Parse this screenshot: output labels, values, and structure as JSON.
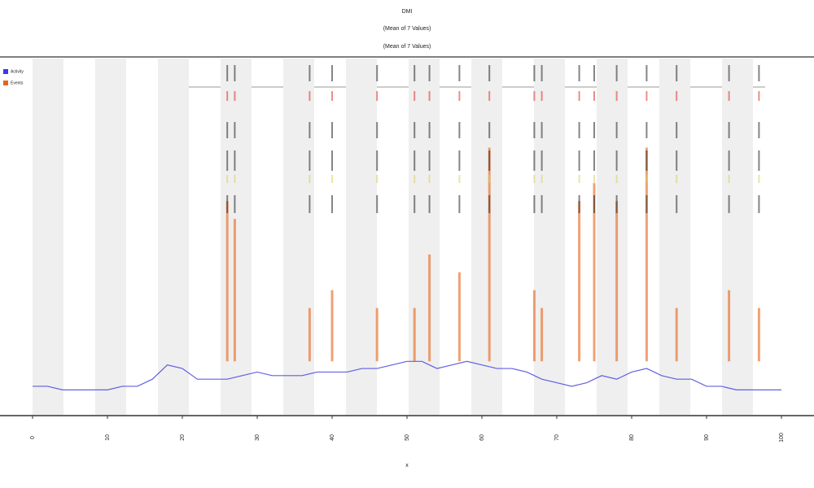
{
  "chart_data": {
    "type": "line",
    "title": "DMI",
    "subtitle": "(Mean of 7 Values)",
    "subtitle2": "(Mean of 7 Values)",
    "x_label": "x",
    "xlim": [
      0,
      100
    ],
    "ylim": [
      0,
      100
    ],
    "xticks": [
      0,
      10,
      20,
      30,
      40,
      50,
      60,
      70,
      80,
      90,
      100
    ],
    "shading": true,
    "legend": "top-left",
    "series": [
      {
        "name": "Activity",
        "color": "#3a3ae0",
        "x": [
          0,
          2,
          4,
          6,
          8,
          10,
          12,
          14,
          16,
          18,
          20,
          22,
          24,
          26,
          28,
          30,
          32,
          34,
          36,
          38,
          40,
          42,
          44,
          46,
          48,
          50,
          52,
          54,
          56,
          58,
          60,
          62,
          64,
          66,
          68,
          70,
          72,
          74,
          76,
          78,
          80,
          82,
          84,
          86,
          88,
          90,
          92,
          94,
          96,
          98,
          100
        ],
        "values": [
          8,
          8,
          7,
          7,
          7,
          7,
          8,
          8,
          10,
          14,
          13,
          10,
          10,
          10,
          11,
          12,
          11,
          11,
          11,
          12,
          12,
          12,
          13,
          13,
          14,
          15,
          15,
          13,
          14,
          15,
          14,
          13,
          13,
          12,
          10,
          9,
          8,
          9,
          11,
          10,
          12,
          13,
          11,
          10,
          10,
          8,
          8,
          7,
          7,
          7,
          7
        ]
      },
      {
        "name": "Events",
        "color": "#e8641a",
        "x": [
          26,
          27,
          37,
          40,
          46,
          51,
          53,
          57,
          61,
          67,
          68,
          73,
          75,
          78,
          82,
          86,
          93,
          97
        ],
        "values": [
          60,
          55,
          30,
          35,
          30,
          30,
          45,
          40,
          75,
          35,
          30,
          60,
          65,
          60,
          75,
          30,
          35,
          30
        ]
      }
    ]
  }
}
